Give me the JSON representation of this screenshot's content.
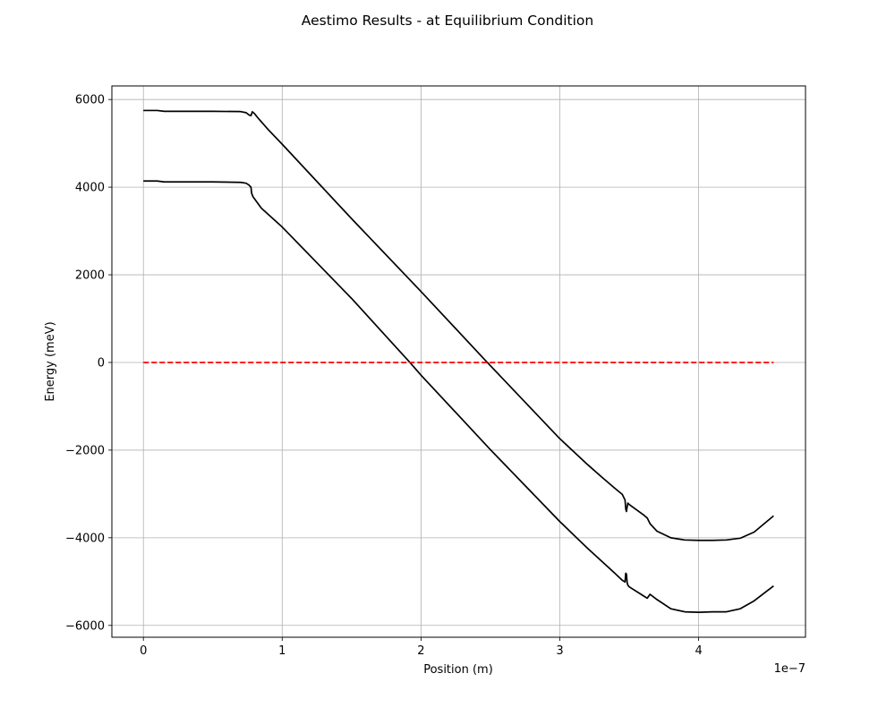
{
  "chart_data": {
    "type": "line",
    "title": "Aestimo Results - at Equilibrium Condition",
    "xlabel": "Position (m)",
    "ylabel": "Energy (meV)",
    "x_offset_label": "1e−7",
    "x_scale": 1e-07,
    "xlim": [
      -2.27e-08,
      4.77e-07
    ],
    "ylim": [
      -6270,
      6310
    ],
    "x_ticks": [
      0,
      1e-07,
      2e-07,
      3e-07,
      4e-07
    ],
    "x_tick_labels": [
      "0",
      "1",
      "2",
      "3",
      "4"
    ],
    "y_ticks": [
      -6000,
      -4000,
      -2000,
      0,
      2000,
      4000,
      6000
    ],
    "y_tick_labels": [
      "−6000",
      "−4000",
      "−2000",
      "0",
      "2000",
      "4000",
      "6000"
    ],
    "grid": true,
    "series": [
      {
        "color": "#000000",
        "style": "solid",
        "x": [
          0,
          1e-08,
          1.5e-08,
          3e-08,
          5e-08,
          7e-08,
          7.4e-08,
          7.6e-08,
          7.75e-08,
          7.85e-08,
          8e-08,
          8.2e-08,
          9e-08,
          1e-07,
          1.5e-07,
          2e-07,
          2.46e-07,
          3e-07,
          3.2e-07,
          3.3e-07,
          3.4e-07,
          3.45e-07,
          3.47e-07,
          3.475e-07,
          3.48e-07,
          3.485e-07,
          3.49e-07,
          3.5e-07,
          3.6e-07,
          3.63e-07,
          3.65e-07,
          3.7e-07,
          3.8e-07,
          3.9e-07,
          4e-07,
          4.1e-07,
          4.2e-07,
          4.3e-07,
          4.4e-07,
          4.54e-07
        ],
        "y": [
          5750,
          5750,
          5730,
          5730,
          5730,
          5725,
          5700,
          5650,
          5630,
          5720,
          5680,
          5600,
          5310,
          4980,
          3280,
          1620,
          60,
          -1740,
          -2330,
          -2610,
          -2880,
          -3010,
          -3140,
          -3340,
          -3400,
          -3300,
          -3210,
          -3240,
          -3470,
          -3550,
          -3680,
          -3850,
          -4000,
          -4050,
          -4060,
          -4060,
          -4050,
          -4010,
          -3870,
          -3500
        ]
      },
      {
        "color": "#000000",
        "style": "solid",
        "x": [
          0,
          1e-08,
          1.5e-08,
          3e-08,
          5e-08,
          7e-08,
          7.4e-08,
          7.6e-08,
          7.75e-08,
          7.8e-08,
          7.9e-08,
          8.5e-08,
          1e-07,
          1.5e-07,
          1.92e-07,
          2e-07,
          2.5e-07,
          3e-07,
          3.2e-07,
          3.4e-07,
          3.45e-07,
          3.47e-07,
          3.475e-07,
          3.48e-07,
          3.485e-07,
          3.49e-07,
          3.5e-07,
          3.6e-07,
          3.63e-07,
          3.65e-07,
          3.7e-07,
          3.8e-07,
          3.9e-07,
          4e-07,
          4.1e-07,
          4.2e-07,
          4.3e-07,
          4.4e-07,
          4.54e-07
        ],
        "y": [
          4140,
          4140,
          4120,
          4120,
          4120,
          4110,
          4090,
          4050,
          4000,
          3860,
          3780,
          3520,
          3090,
          1460,
          0,
          -290,
          -1990,
          -3630,
          -4240,
          -4820,
          -4970,
          -5010,
          -4810,
          -4830,
          -5020,
          -5080,
          -5120,
          -5320,
          -5380,
          -5290,
          -5410,
          -5620,
          -5690,
          -5700,
          -5690,
          -5690,
          -5620,
          -5440,
          -5100
        ]
      },
      {
        "color": "#ff0000",
        "style": "dashed",
        "x": [
          0,
          4.54e-07
        ],
        "y": [
          0,
          0
        ]
      }
    ]
  }
}
